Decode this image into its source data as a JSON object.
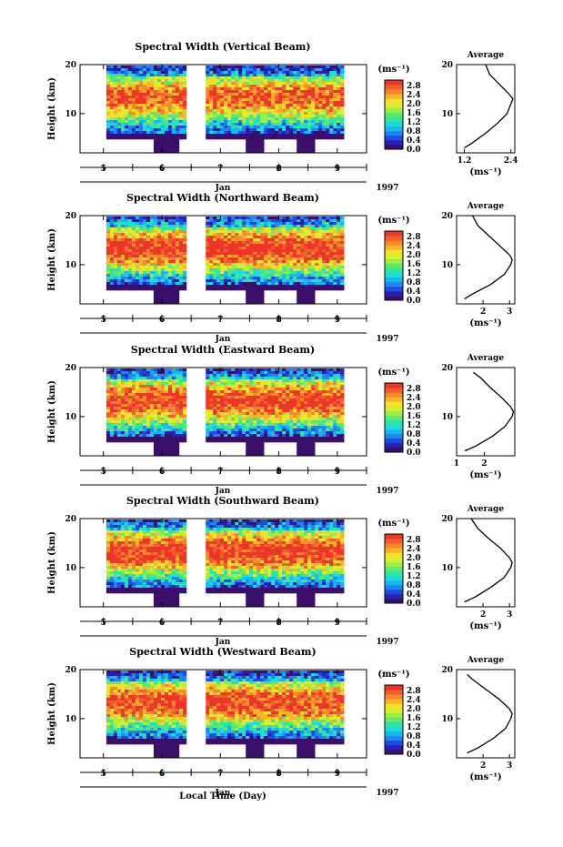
{
  "figure": {
    "xlabel": "Local Time (Day)",
    "month_label": "Jan",
    "year_label": "1997",
    "day_labels": [
      "5",
      "6",
      "7",
      "8",
      "9"
    ]
  },
  "colorbar": {
    "unit_label": "(ms⁻¹)",
    "tick_labels": [
      "2.8",
      "2.4",
      "2.0",
      "1.6",
      "1.2",
      "0.8",
      "0.4",
      "0.0"
    ],
    "colors": [
      "#3a0f6b",
      "#2a1fb5",
      "#1c4de0",
      "#1e86f0",
      "#19b7f2",
      "#1edcd8",
      "#2ee6a0",
      "#5fe870",
      "#9eec45",
      "#d8ee2e",
      "#f5e02a",
      "#f7b52a",
      "#f58a2d",
      "#f25d2d",
      "#ee3628"
    ]
  },
  "chart_data": [
    {
      "type": "heatmap",
      "title": "Spectral Width (Vertical Beam)",
      "ylabel": "Height (km)",
      "ylim": [
        2,
        20
      ],
      "yticks": [
        10,
        20
      ],
      "xlim": [
        4.6,
        9.5
      ],
      "colorbar_range": [
        0.0,
        3.0
      ],
      "data_gaps_days": [
        [
          4.6,
          5.05
        ],
        [
          6.4,
          6.75
        ]
      ],
      "profile": {
        "title": "Average",
        "xlabel": "(ms⁻¹)",
        "xticks": [
          "1.2",
          "2.4"
        ],
        "xlim": [
          1.0,
          2.5
        ],
        "heights_km": [
          3,
          4,
          6,
          8,
          10,
          12,
          13,
          14,
          16,
          18,
          20
        ],
        "values": [
          1.2,
          1.4,
          1.75,
          2.05,
          2.3,
          2.4,
          2.45,
          2.35,
          2.1,
          1.85,
          1.75
        ]
      }
    },
    {
      "type": "heatmap",
      "title": "Spectral Width (Northward Beam)",
      "ylabel": "Height (km)",
      "ylim": [
        2,
        20
      ],
      "yticks": [
        10,
        20
      ],
      "xlim": [
        4.6,
        9.5
      ],
      "colorbar_range": [
        0.0,
        3.0
      ],
      "data_gaps_days": [
        [
          4.6,
          5.05
        ],
        [
          6.4,
          6.75
        ]
      ],
      "profile": {
        "title": "Average",
        "xlabel": "(ms⁻¹)",
        "xticks": [
          "2",
          "3"
        ],
        "xlim": [
          1.0,
          3.2
        ],
        "heights_km": [
          3,
          4,
          6,
          8,
          10,
          11,
          12,
          14,
          16,
          18,
          20
        ],
        "values": [
          1.3,
          1.6,
          2.3,
          2.8,
          3.05,
          3.1,
          3.0,
          2.6,
          2.2,
          1.8,
          1.6
        ]
      }
    },
    {
      "type": "heatmap",
      "title": "Spectral Width (Eastward Beam)",
      "ylabel": "Height (km)",
      "ylim": [
        2,
        20
      ],
      "yticks": [
        10,
        20
      ],
      "xlim": [
        4.6,
        9.5
      ],
      "colorbar_range": [
        0.0,
        3.0
      ],
      "data_gaps_days": [
        [
          4.6,
          5.05
        ],
        [
          6.4,
          6.75
        ]
      ],
      "profile": {
        "title": "Average",
        "xlabel": "(ms⁻¹)",
        "xticks": [
          "1",
          "2"
        ],
        "xlim": [
          1.0,
          3.1
        ],
        "heights_km": [
          3,
          4,
          6,
          8,
          10,
          11,
          12,
          14,
          16,
          18,
          19
        ],
        "values": [
          1.3,
          1.7,
          2.3,
          2.75,
          3.0,
          3.05,
          2.95,
          2.6,
          2.2,
          1.85,
          1.6
        ]
      }
    },
    {
      "type": "heatmap",
      "title": "Spectral Width (Southward Beam)",
      "ylabel": "Height (km)",
      "ylim": [
        2,
        20
      ],
      "yticks": [
        10,
        20
      ],
      "xlim": [
        4.6,
        9.5
      ],
      "colorbar_range": [
        0.0,
        3.0
      ],
      "data_gaps_days": [
        [
          4.6,
          5.05
        ],
        [
          6.4,
          6.75
        ]
      ],
      "profile": {
        "title": "Average",
        "xlabel": "(ms⁻¹)",
        "xticks": [
          "2",
          "3"
        ],
        "xlim": [
          1.0,
          3.2
        ],
        "heights_km": [
          3,
          4,
          6,
          8,
          10,
          11,
          12,
          14,
          16,
          18,
          20
        ],
        "values": [
          1.3,
          1.7,
          2.3,
          2.8,
          3.05,
          3.1,
          3.0,
          2.65,
          2.2,
          1.8,
          1.55
        ]
      }
    },
    {
      "type": "heatmap",
      "title": "Spectral Width (Westward Beam)",
      "ylabel": "Height (km)",
      "ylim": [
        2,
        20
      ],
      "yticks": [
        10,
        20
      ],
      "xlim": [
        4.6,
        9.5
      ],
      "colorbar_range": [
        0.0,
        3.0
      ],
      "data_gaps_days": [
        [
          4.6,
          5.05
        ],
        [
          6.4,
          6.75
        ]
      ],
      "profile": {
        "title": "Average",
        "xlabel": "(ms⁻¹)",
        "xticks": [
          "2",
          "3"
        ],
        "xlim": [
          1.0,
          3.2
        ],
        "heights_km": [
          3,
          4,
          6,
          8,
          10,
          11,
          12,
          14,
          16,
          18,
          19
        ],
        "values": [
          1.4,
          1.8,
          2.4,
          2.85,
          3.05,
          3.1,
          3.0,
          2.6,
          2.1,
          1.6,
          1.4
        ]
      }
    }
  ]
}
